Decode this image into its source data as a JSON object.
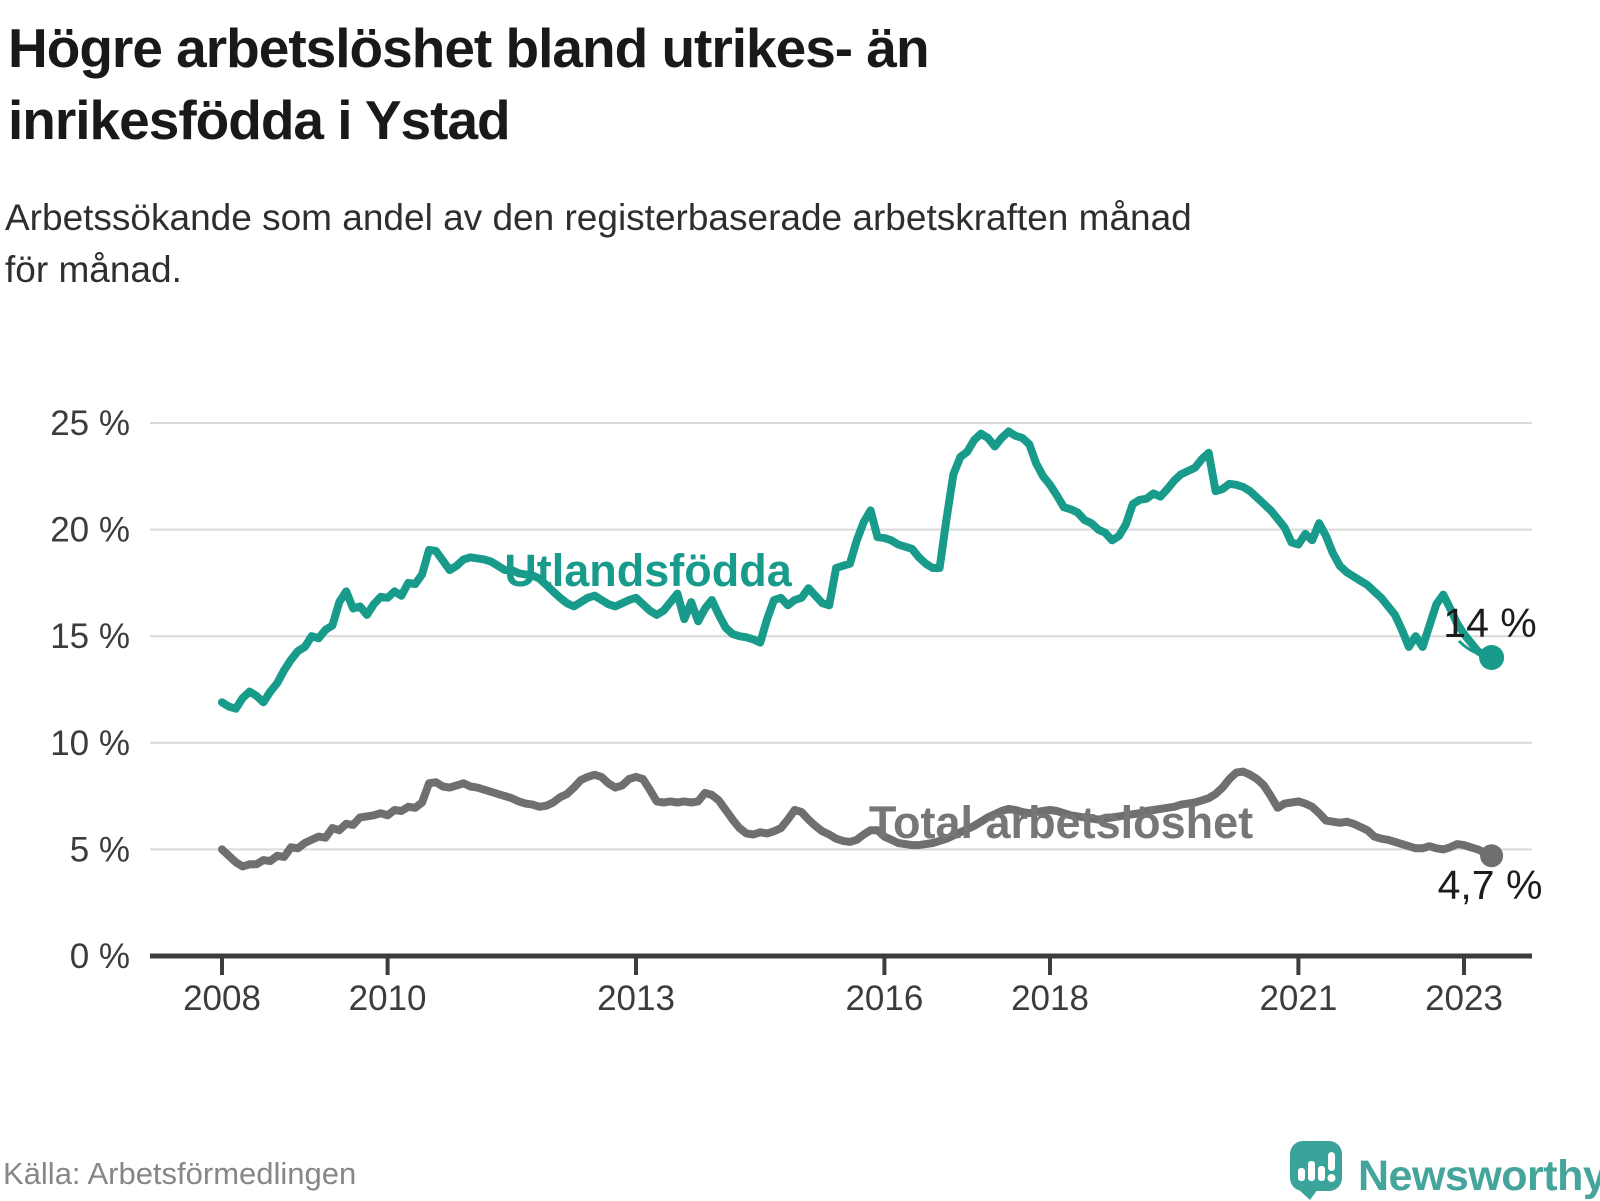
{
  "header": {
    "title_lines": [
      "Högre arbetslöshet bland utrikes- än",
      "inrikesfödda i Ystad"
    ],
    "subtitle_lines": [
      "Arbetssökande som andel av den registerbaserade arbetskraften månad",
      "för månad."
    ]
  },
  "chart_data": {
    "type": "line",
    "title": "Högre arbetslöshet bland utrikes- än inrikesfödda i Ystad",
    "xlabel": "",
    "ylabel": "",
    "ylim": [
      0,
      25
    ],
    "grid": "horizontal",
    "legend_position": "inline-labels",
    "x": {
      "start_year": 2008,
      "step_months": 1,
      "end_year_approx": 2023.33
    },
    "x_ticks": [
      {
        "year": 2008,
        "label": "2008"
      },
      {
        "year": 2010,
        "label": "2010"
      },
      {
        "year": 2013,
        "label": "2013"
      },
      {
        "year": 2016,
        "label": "2016"
      },
      {
        "year": 2018,
        "label": "2018"
      },
      {
        "year": 2021,
        "label": "2021"
      },
      {
        "year": 2023,
        "label": "2023"
      }
    ],
    "y_ticks": [
      {
        "value": 25,
        "label": "25 %"
      },
      {
        "value": 20,
        "label": "20 %"
      },
      {
        "value": 15,
        "label": "15 %"
      },
      {
        "value": 10,
        "label": "10 %"
      },
      {
        "value": 5,
        "label": "5 %"
      },
      {
        "value": 0,
        "label": "0 %"
      }
    ],
    "series": [
      {
        "name": "Utlandsfödda",
        "color": "#189b8b",
        "end_label": "14 %",
        "end_value": 14.0,
        "values": [
          11.9,
          11.7,
          11.6,
          12.1,
          12.4,
          12.2,
          11.9,
          12.4,
          12.8,
          13.4,
          13.9,
          14.3,
          14.5,
          15.0,
          14.9,
          15.3,
          15.5,
          16.6,
          17.1,
          16.3,
          16.4,
          16.0,
          16.5,
          16.85,
          16.8,
          17.1,
          16.9,
          17.5,
          17.45,
          17.9,
          19.05,
          19.0,
          18.55,
          18.1,
          18.3,
          18.6,
          18.7,
          18.65,
          18.6,
          18.5,
          18.3,
          18.1,
          18.1,
          17.95,
          17.9,
          17.85,
          17.7,
          17.4,
          17.1,
          16.8,
          16.55,
          16.4,
          16.6,
          16.8,
          16.9,
          16.7,
          16.5,
          16.4,
          16.55,
          16.7,
          16.8,
          16.5,
          16.2,
          16.0,
          16.2,
          16.6,
          17.0,
          15.8,
          16.6,
          15.7,
          16.3,
          16.7,
          16.0,
          15.4,
          15.1,
          15.0,
          14.95,
          14.85,
          14.7,
          15.8,
          16.7,
          16.8,
          16.45,
          16.7,
          16.8,
          17.25,
          16.9,
          16.55,
          16.45,
          18.2,
          18.3,
          18.4,
          19.5,
          20.35,
          20.9,
          19.65,
          19.6,
          19.5,
          19.3,
          19.2,
          19.1,
          18.7,
          18.4,
          18.2,
          18.2,
          20.5,
          22.6,
          23.4,
          23.65,
          24.2,
          24.5,
          24.3,
          23.9,
          24.3,
          24.6,
          24.4,
          24.3,
          24.0,
          23.1,
          22.5,
          22.1,
          21.6,
          21.05,
          20.95,
          20.8,
          20.45,
          20.3,
          20.0,
          19.85,
          19.5,
          19.7,
          20.25,
          21.2,
          21.4,
          21.45,
          21.7,
          21.55,
          21.9,
          22.3,
          22.6,
          22.75,
          22.9,
          23.3,
          23.6,
          21.8,
          21.9,
          22.15,
          22.1,
          22.0,
          21.8,
          21.5,
          21.2,
          20.9,
          20.5,
          20.1,
          19.4,
          19.3,
          19.8,
          19.5,
          20.3,
          19.7,
          18.9,
          18.3,
          18.0,
          17.8,
          17.6,
          17.4,
          17.1,
          16.8,
          16.4,
          16.0,
          15.3,
          14.5,
          15.0,
          14.5,
          15.5,
          16.5,
          16.95,
          16.3,
          15.6,
          15.1,
          14.7,
          14.3,
          14.1,
          14.0
        ]
      },
      {
        "name": "Total arbetslöshet",
        "color": "#6f6f6f",
        "end_label": "4,7 %",
        "end_value": 4.7,
        "values": [
          5.0,
          4.7,
          4.4,
          4.2,
          4.3,
          4.3,
          4.5,
          4.45,
          4.7,
          4.65,
          5.1,
          5.05,
          5.3,
          5.45,
          5.6,
          5.55,
          6.0,
          5.9,
          6.2,
          6.15,
          6.5,
          6.55,
          6.6,
          6.7,
          6.6,
          6.85,
          6.8,
          7.0,
          6.95,
          7.2,
          8.1,
          8.15,
          7.95,
          7.9,
          8.0,
          8.1,
          7.95,
          7.9,
          7.8,
          7.7,
          7.6,
          7.5,
          7.4,
          7.25,
          7.15,
          7.1,
          7.0,
          7.05,
          7.2,
          7.45,
          7.6,
          7.9,
          8.25,
          8.4,
          8.5,
          8.4,
          8.1,
          7.9,
          8.0,
          8.3,
          8.4,
          8.3,
          7.8,
          7.25,
          7.2,
          7.25,
          7.2,
          7.25,
          7.2,
          7.25,
          7.65,
          7.55,
          7.3,
          6.85,
          6.4,
          6.0,
          5.75,
          5.7,
          5.8,
          5.75,
          5.85,
          6.0,
          6.4,
          6.85,
          6.75,
          6.4,
          6.1,
          5.85,
          5.7,
          5.5,
          5.4,
          5.35,
          5.45,
          5.7,
          5.9,
          5.9,
          5.6,
          5.45,
          5.3,
          5.25,
          5.2,
          5.2,
          5.25,
          5.3,
          5.4,
          5.5,
          5.65,
          5.8,
          5.95,
          6.1,
          6.3,
          6.5,
          6.65,
          6.8,
          6.9,
          6.85,
          6.75,
          6.7,
          6.75,
          6.8,
          6.85,
          6.8,
          6.7,
          6.6,
          6.55,
          6.5,
          6.45,
          6.4,
          6.45,
          6.5,
          6.55,
          6.6,
          6.65,
          6.7,
          6.8,
          6.85,
          6.9,
          6.95,
          7.0,
          7.1,
          7.15,
          7.2,
          7.3,
          7.4,
          7.6,
          7.9,
          8.3,
          8.6,
          8.65,
          8.5,
          8.3,
          8.0,
          7.5,
          6.95,
          7.15,
          7.2,
          7.25,
          7.15,
          7.0,
          6.7,
          6.35,
          6.3,
          6.25,
          6.3,
          6.2,
          6.05,
          5.9,
          5.6,
          5.5,
          5.45,
          5.35,
          5.25,
          5.15,
          5.05,
          5.05,
          5.15,
          5.05,
          5.0,
          5.1,
          5.25,
          5.2,
          5.1,
          5.0,
          4.85,
          4.7
        ]
      }
    ],
    "annotations": {
      "series1_label": "Utlandsfödda",
      "series2_label": "Total arbetslöshet",
      "series1_end_label": "14 %",
      "series2_end_label": "4,7 %"
    }
  },
  "footer": {
    "source": "Källa: Arbetsförmedlingen",
    "brand": "Newsworthy"
  },
  "colors": {
    "accent_teal": "#189b8b",
    "line_gray": "#6f6f6f",
    "gridline": "#d9d9d9",
    "axis": "#3d3d3d",
    "tick_text": "#3c3c3c",
    "title_text": "#191919",
    "source_text": "#878787",
    "logo_teal": "#3aa49b"
  }
}
